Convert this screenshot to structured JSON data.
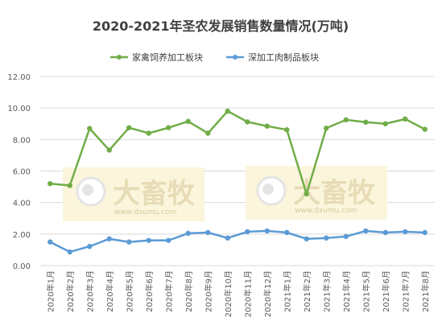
{
  "chart_data": {
    "type": "line",
    "title": "2020-2021年圣农发展销售数量情况(万吨)",
    "categories": [
      "2020年1月",
      "2020年2月",
      "2020年3月",
      "2020年4月",
      "2020年5月",
      "2020年6月",
      "2020年7月",
      "2020年8月",
      "2020年9月",
      "2020年10月",
      "2020年11月",
      "2020年12月",
      "2021年1月",
      "2021年2月",
      "2021年3月",
      "2021年4月",
      "2021年5月",
      "2021年6月",
      "2021年7月",
      "2021年8月"
    ],
    "series": [
      {
        "name": "家禽饲养加工板块",
        "color": "#70ad47",
        "values": [
          5.2,
          5.08,
          8.7,
          7.33,
          8.75,
          8.4,
          8.75,
          9.15,
          8.4,
          9.8,
          9.12,
          8.85,
          8.62,
          4.55,
          8.72,
          9.25,
          9.1,
          9.0,
          9.3,
          8.65
        ]
      },
      {
        "name": "深加工肉制品板块",
        "color": "#5b9bd5",
        "values": [
          1.5,
          0.87,
          1.22,
          1.7,
          1.5,
          1.6,
          1.6,
          2.05,
          2.1,
          1.75,
          2.15,
          2.2,
          2.1,
          1.7,
          1.75,
          1.85,
          2.2,
          2.1,
          2.15,
          2.1
        ]
      }
    ],
    "ylim": [
      0,
      12
    ],
    "yticks": [
      "0.00",
      "2.00",
      "4.00",
      "6.00",
      "8.00",
      "10.00",
      "12.00"
    ],
    "grid": true,
    "legend": "top-center"
  },
  "watermark": {
    "text": "大畜牧",
    "url": "www.dxumu.com"
  }
}
